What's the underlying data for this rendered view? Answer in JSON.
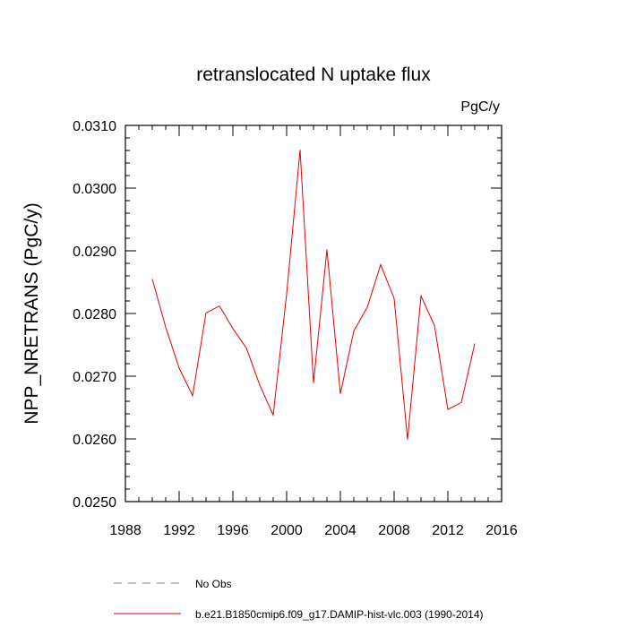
{
  "chart_data": {
    "type": "line",
    "title": "retranslocated N uptake flux",
    "units_label": "PgC/y",
    "xlabel": "",
    "ylabel": "NPP_NRETRANS  (PgC/y)",
    "xlim": [
      1988,
      2016
    ],
    "ylim": [
      0.025,
      0.031
    ],
    "xticks": [
      1988,
      1992,
      1996,
      2000,
      2004,
      2008,
      2012,
      2016
    ],
    "yticks": [
      0.025,
      0.026,
      0.027,
      0.028,
      0.029,
      0.03,
      0.031
    ],
    "ytick_labels": [
      "0.0250",
      "0.0260",
      "0.0270",
      "0.0280",
      "0.0290",
      "0.0300",
      "0.0310"
    ],
    "series": [
      {
        "name": "b.e21.B1850cmip6.f09_g17.DAMIP-hist-vlc.003 (1990-2014)",
        "color": "#e00000",
        "x": [
          1990,
          1991,
          1992,
          1993,
          1994,
          1995,
          1996,
          1997,
          1998,
          1999,
          2000,
          2001,
          2002,
          2003,
          2004,
          2005,
          2006,
          2007,
          2008,
          2009,
          2010,
          2011,
          2012,
          2013,
          2014
        ],
        "values": [
          0.02855,
          0.02778,
          0.02713,
          0.02669,
          0.02801,
          0.02812,
          0.02776,
          0.02745,
          0.02686,
          0.02638,
          0.02831,
          0.03061,
          0.02689,
          0.02902,
          0.02672,
          0.02772,
          0.0281,
          0.02878,
          0.02824,
          0.02599,
          0.02828,
          0.02781,
          0.02647,
          0.02658,
          0.02752
        ]
      }
    ],
    "legend": [
      {
        "label": "No Obs",
        "color": "#7a7ad8",
        "style": "dashed"
      },
      {
        "label": "b.e21.B1850cmip6.f09_g17.DAMIP-hist-vlc.003 (1990-2014)",
        "color": "#e00000",
        "style": "solid"
      }
    ]
  }
}
